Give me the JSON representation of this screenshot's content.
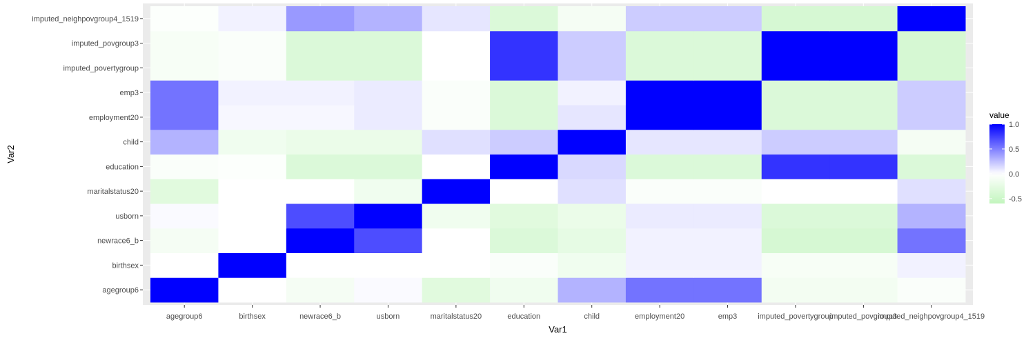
{
  "chart_data": {
    "type": "heatmap",
    "xlabel": "Var1",
    "ylabel": "Var2",
    "x_categories": [
      "agegroup6",
      "birthsex",
      "newrace6_b",
      "usborn",
      "maritalstatus20",
      "education",
      "child",
      "employment20",
      "emp3",
      "imputed_povertygroup",
      "imputed_povgroup3",
      "imputed_neighpovgroup4_1519"
    ],
    "y_categories": [
      "agegroup6",
      "birthsex",
      "newrace6_b",
      "usborn",
      "maritalstatus20",
      "education",
      "child",
      "employment20",
      "emp3",
      "imputed_povertygroup",
      "imputed_povgroup3",
      "imputed_neighpovgroup4_1519"
    ],
    "values": [
      [
        1.0,
        0.0,
        -0.1,
        0.02,
        -0.3,
        -0.15,
        0.3,
        0.55,
        0.55,
        -0.12,
        -0.12,
        -0.05
      ],
      [
        0.0,
        1.0,
        0.0,
        0.0,
        0.0,
        -0.05,
        -0.15,
        0.05,
        0.05,
        -0.08,
        -0.08,
        0.05
      ],
      [
        -0.1,
        0.0,
        1.0,
        0.7,
        0.0,
        -0.35,
        -0.25,
        0.05,
        0.05,
        -0.4,
        -0.4,
        0.55
      ],
      [
        0.02,
        0.0,
        0.7,
        1.0,
        -0.15,
        -0.3,
        -0.2,
        0.08,
        0.08,
        -0.35,
        -0.35,
        0.3
      ],
      [
        -0.3,
        0.0,
        0.0,
        -0.15,
        1.0,
        0.0,
        0.12,
        -0.05,
        -0.05,
        0.0,
        0.0,
        0.12
      ],
      [
        -0.05,
        -0.03,
        -0.35,
        -0.35,
        0.0,
        1.0,
        0.15,
        -0.35,
        -0.35,
        0.8,
        0.8,
        -0.35
      ],
      [
        0.3,
        -0.15,
        -0.2,
        -0.2,
        0.12,
        0.2,
        1.0,
        0.1,
        0.1,
        0.2,
        0.2,
        -0.1
      ],
      [
        0.55,
        0.03,
        0.03,
        0.08,
        -0.05,
        -0.35,
        0.1,
        1.0,
        1.0,
        -0.35,
        -0.35,
        0.2
      ],
      [
        0.55,
        0.05,
        0.05,
        0.08,
        -0.05,
        -0.35,
        0.05,
        1.0,
        1.0,
        -0.35,
        -0.35,
        0.2
      ],
      [
        -0.08,
        -0.05,
        -0.35,
        -0.35,
        0.0,
        0.8,
        0.2,
        -0.35,
        -0.35,
        1.0,
        1.0,
        -0.4
      ],
      [
        -0.08,
        -0.05,
        -0.35,
        -0.35,
        0.0,
        0.8,
        0.2,
        -0.35,
        -0.35,
        1.0,
        1.0,
        -0.4
      ],
      [
        -0.03,
        0.05,
        0.4,
        0.3,
        0.1,
        -0.35,
        -0.1,
        0.2,
        0.2,
        -0.4,
        -0.4,
        1.0
      ]
    ],
    "value_range": [
      -0.6,
      1.0
    ],
    "legend": {
      "title": "value",
      "ticks": [
        1.0,
        0.5,
        0.0,
        -0.5
      ],
      "tick_labels": [
        "1.0",
        "0.5",
        "0.0",
        "-0.5"
      ],
      "position": "right"
    },
    "colors": {
      "high": "#0000ff",
      "mid": "#ffffff",
      "low": "#c2f5bd",
      "panel_background": "#ebebeb",
      "grid": "#ffffff"
    }
  }
}
